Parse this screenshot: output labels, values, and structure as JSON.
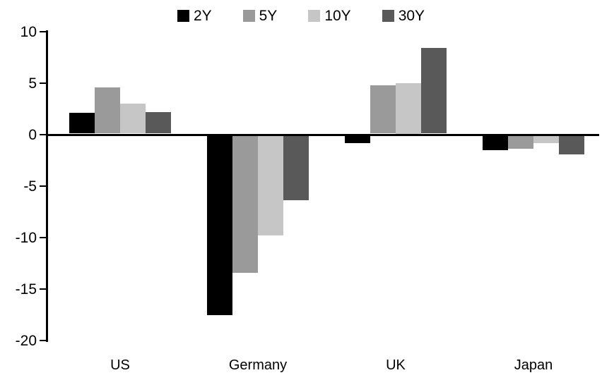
{
  "chart_data": {
    "type": "bar",
    "title": "",
    "categories": [
      "US",
      "Germany",
      "UK",
      "Japan"
    ],
    "series": [
      {
        "name": "2Y",
        "color": "#000000",
        "values": [
          2.1,
          -17.5,
          -0.8,
          -1.5
        ]
      },
      {
        "name": "5Y",
        "color": "#9a9a9a",
        "values": [
          4.6,
          -13.4,
          4.8,
          -1.4
        ]
      },
      {
        "name": "10Y",
        "color": "#c6c6c6",
        "values": [
          3.0,
          -9.8,
          5.0,
          -0.8
        ]
      },
      {
        "name": "30Y",
        "color": "#595959",
        "values": [
          2.2,
          -6.4,
          8.4,
          -1.9
        ]
      }
    ],
    "ylim": [
      -20,
      10
    ],
    "ytick_interval": 5,
    "yticks": [
      10,
      5,
      0,
      -5,
      -10,
      -15,
      -20
    ],
    "ytick_labels": [
      "10",
      "5",
      "0",
      "-5",
      "-10",
      "-15",
      "-20"
    ],
    "grid": false,
    "legend_position": "top",
    "axis_color": "#000000",
    "background_color": "#ffffff"
  }
}
